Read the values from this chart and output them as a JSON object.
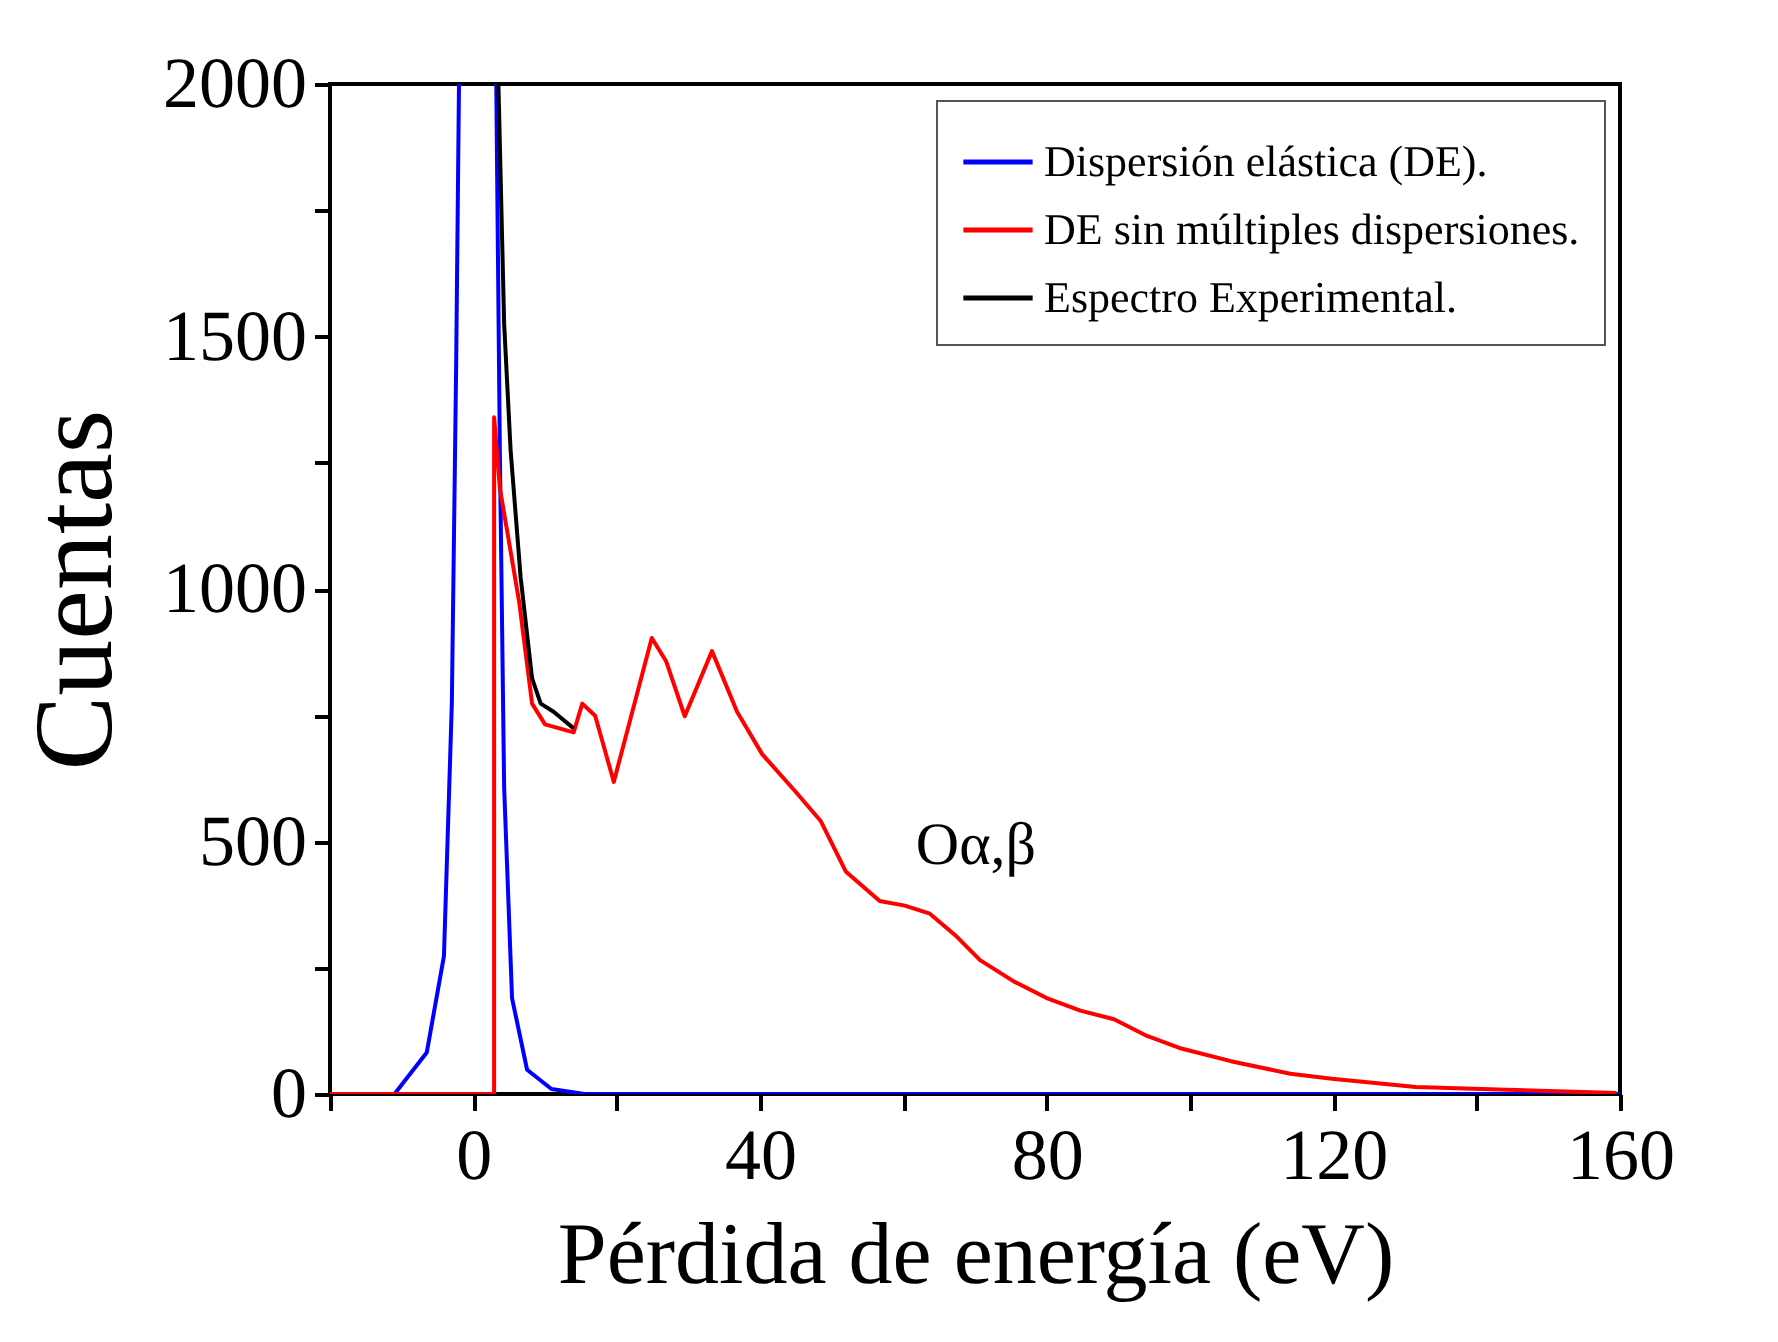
{
  "chart_data": {
    "type": "line",
    "xlabel": "Pérdida de energía (eV)",
    "ylabel": "Cuentas",
    "xlim": [
      -20,
      160
    ],
    "ylim": [
      0,
      2000
    ],
    "xticks": [
      {
        "value": -20,
        "label": null
      },
      0,
      {
        "value": 20,
        "label": null
      },
      40,
      {
        "value": 60,
        "label": null
      },
      80,
      {
        "value": 100,
        "label": null
      },
      120,
      {
        "value": 140,
        "label": null
      },
      160
    ],
    "yticks": [
      0,
      {
        "value": 250,
        "label": null
      },
      500,
      {
        "value": 750,
        "label": null
      },
      1000,
      {
        "value": 1250,
        "label": null
      },
      1500,
      {
        "value": 1750,
        "label": null
      },
      2000
    ],
    "grid": false,
    "legend": "top right",
    "marker": "none",
    "line_style": "solid",
    "annotations": [
      "Oα,β"
    ],
    "series": [
      {
        "name": "Dispersión elástica (DE).",
        "color": "#0000ff",
        "x": [
          -20,
          -11,
          -6.5,
          -4.1,
          -3,
          -2.4,
          -2,
          0.6,
          3.2,
          3.7,
          4.3,
          5.4,
          7.5,
          10.9,
          15.5,
          160
        ],
        "values": [
          0,
          0,
          82,
          273,
          773,
          1440,
          2000,
          null,
          2000,
          1275,
          607,
          190,
          48,
          10,
          0,
          0
        ]
      },
      {
        "name": "DE sin múltiples dispersiones.",
        "color": "#ff0000",
        "x": [
          -20,
          2.9,
          2.9,
          3.7,
          6.4,
          8.2,
          10,
          14,
          15.2,
          17,
          19.6,
          24.9,
          26.9,
          29.5,
          33.3,
          36.8,
          40.3,
          45,
          48.5,
          52,
          56.7,
          60.2,
          63.7,
          67.2,
          70.7,
          75.4,
          80,
          84.7,
          89.4,
          94,
          98.8,
          105.7,
          114,
          119.8,
          131.5,
          143,
          159.5
        ],
        "values": [
          0,
          0,
          1340,
          1200,
          974,
          773,
          732,
          716,
          773,
          749,
          618,
          903,
          857,
          748,
          877,
          757,
          673,
          598,
          540,
          440,
          382,
          373,
          357,
          315,
          265,
          223,
          190,
          165,
          148,
          115,
          90,
          65,
          40,
          30,
          14,
          9,
          2
        ]
      },
      {
        "name": "Espectro Experimental.",
        "color": "#000000",
        "x": [
          3.5,
          4.3,
          5.2,
          6.6,
          8.2,
          9.4,
          11.2,
          14
        ],
        "values": [
          2000,
          1525,
          1275,
          1023,
          823,
          773,
          757,
          724
        ]
      }
    ]
  }
}
